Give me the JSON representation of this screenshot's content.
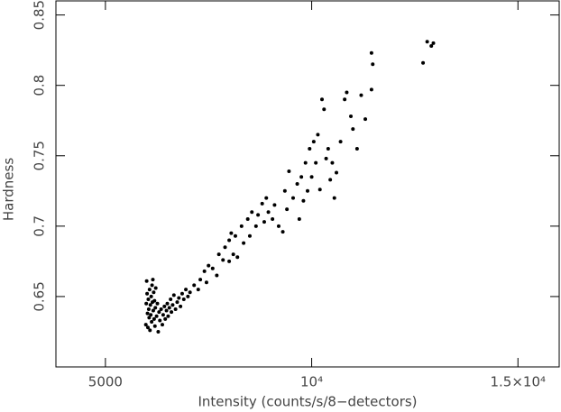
{
  "chart_data": {
    "type": "scatter",
    "x_label": "Intensity (counts/s/8−detectors)",
    "y_label": "Hardness",
    "color": "#000000",
    "xlim": [
      3800,
      16000
    ],
    "ylim": [
      0.6,
      0.86
    ],
    "xticks": [
      {
        "value": 5000,
        "label": "5000"
      },
      {
        "value": 10000,
        "label": "10⁴"
      },
      {
        "value": 15000,
        "label": "1.5×10⁴"
      }
    ],
    "yticks": [
      0.65,
      0.7,
      0.75,
      0.8,
      0.85
    ],
    "x": [
      5980,
      5990,
      6000,
      6010,
      6020,
      6030,
      6040,
      6050,
      6060,
      6070,
      6080,
      6090,
      6100,
      6110,
      6120,
      6130,
      6140,
      6150,
      6160,
      6170,
      6180,
      6190,
      6200,
      6210,
      6220,
      6240,
      6260,
      6280,
      6300,
      6320,
      6350,
      6380,
      6400,
      6430,
      6450,
      6480,
      6500,
      6520,
      6550,
      6580,
      6600,
      6630,
      6660,
      6700,
      6740,
      6780,
      6820,
      6860,
      6900,
      6950,
      7000,
      7050,
      7150,
      7250,
      7300,
      7400,
      7450,
      7500,
      7600,
      7700,
      7750,
      7850,
      7900,
      8000,
      8000,
      8050,
      8100,
      8150,
      8200,
      8300,
      8350,
      8450,
      8500,
      8550,
      8650,
      8700,
      8800,
      8850,
      8900,
      8950,
      9050,
      9100,
      9200,
      9300,
      9350,
      9400,
      9450,
      9550,
      9650,
      9700,
      9750,
      9800,
      9850,
      9900,
      9950,
      10000,
      10050,
      10100,
      10150,
      10200,
      10250,
      10300,
      10350,
      10400,
      10450,
      10500,
      10550,
      10600,
      10700,
      10800,
      10850,
      10950,
      11000,
      11100,
      11200,
      11300,
      11450,
      11450,
      11480,
      12700,
      12800,
      12900,
      12950
    ],
    "values": [
      0.63,
      0.645,
      0.661,
      0.652,
      0.638,
      0.628,
      0.648,
      0.641,
      0.635,
      0.655,
      0.626,
      0.644,
      0.637,
      0.65,
      0.632,
      0.658,
      0.646,
      0.662,
      0.64,
      0.653,
      0.634,
      0.647,
      0.629,
      0.642,
      0.656,
      0.636,
      0.645,
      0.625,
      0.639,
      0.633,
      0.641,
      0.63,
      0.637,
      0.643,
      0.634,
      0.64,
      0.645,
      0.636,
      0.642,
      0.648,
      0.639,
      0.644,
      0.651,
      0.641,
      0.646,
      0.649,
      0.643,
      0.652,
      0.648,
      0.655,
      0.65,
      0.653,
      0.658,
      0.655,
      0.662,
      0.668,
      0.66,
      0.672,
      0.67,
      0.665,
      0.68,
      0.676,
      0.685,
      0.69,
      0.675,
      0.695,
      0.68,
      0.693,
      0.678,
      0.7,
      0.688,
      0.705,
      0.693,
      0.71,
      0.7,
      0.708,
      0.716,
      0.703,
      0.72,
      0.71,
      0.705,
      0.715,
      0.7,
      0.696,
      0.725,
      0.712,
      0.739,
      0.72,
      0.73,
      0.705,
      0.735,
      0.718,
      0.745,
      0.725,
      0.755,
      0.735,
      0.76,
      0.745,
      0.765,
      0.726,
      0.79,
      0.783,
      0.748,
      0.755,
      0.733,
      0.745,
      0.72,
      0.738,
      0.76,
      0.79,
      0.795,
      0.778,
      0.769,
      0.755,
      0.793,
      0.776,
      0.797,
      0.823,
      0.815,
      0.816,
      0.831,
      0.828,
      0.83
    ]
  }
}
